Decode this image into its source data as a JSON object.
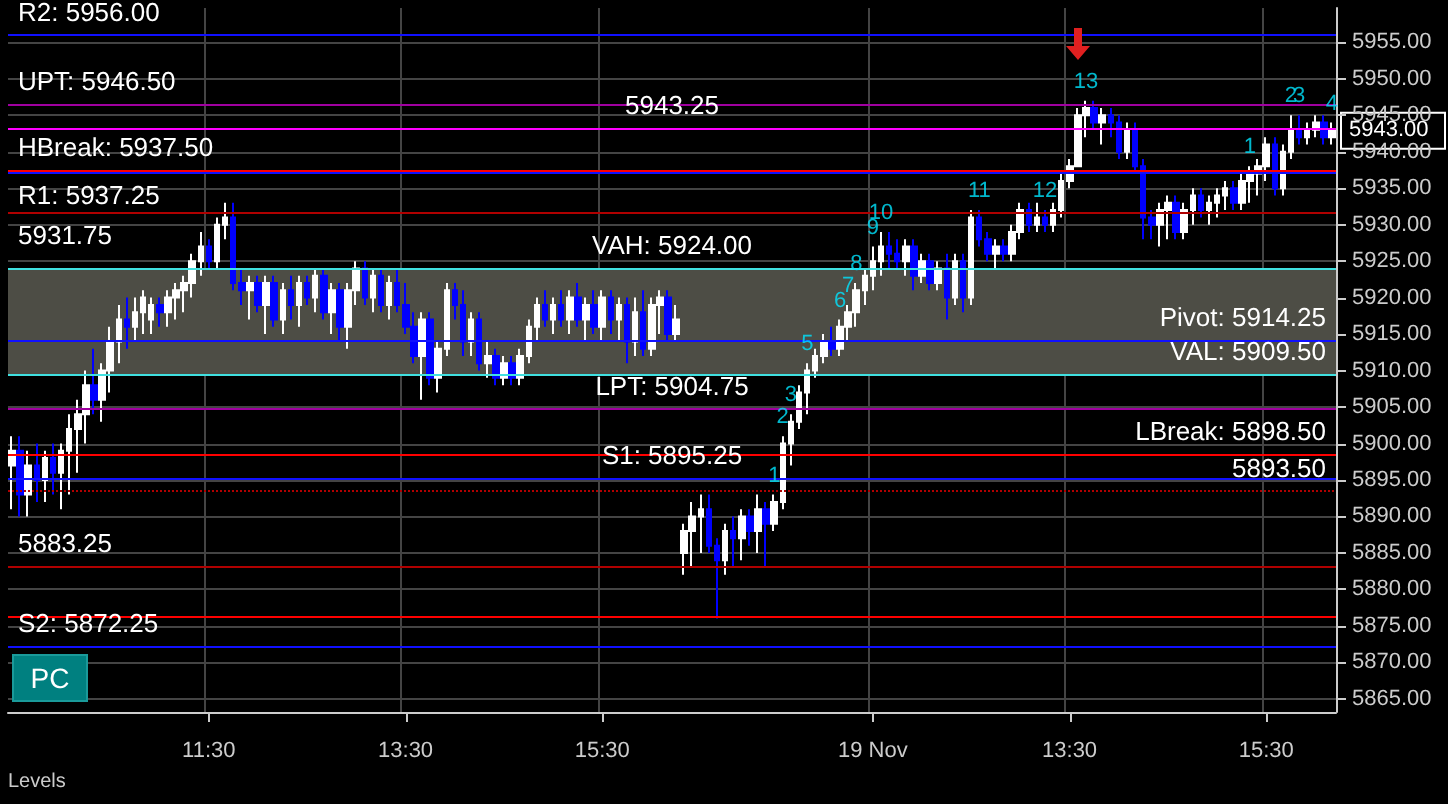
{
  "chart_data": {
    "type": "candlestick",
    "categories": [
      null,
      null,
      null,
      null,
      null,
      null,
      null,
      null,
      null,
      null,
      null,
      null,
      null,
      null,
      null,
      null,
      null,
      null,
      null,
      null,
      null,
      null,
      null,
      null,
      "11:30",
      null,
      null,
      null,
      null,
      null,
      null,
      null,
      null,
      null,
      null,
      null,
      null,
      null,
      null,
      null,
      null,
      null,
      null,
      null,
      null,
      null,
      null,
      null,
      "13:30",
      null,
      null,
      null,
      null,
      null,
      null,
      null,
      null,
      null,
      null,
      null,
      null,
      null,
      null,
      null,
      null,
      null,
      null,
      null,
      null,
      null,
      null,
      null,
      "15:30",
      null,
      null,
      null,
      null,
      null,
      null,
      null,
      null,
      null,
      null,
      null,
      null,
      null,
      null,
      null,
      null,
      null,
      null,
      null,
      null,
      null,
      null,
      null,
      null,
      null,
      null,
      null,
      null,
      null,
      null,
      null,
      null,
      "19 Nov",
      null,
      null,
      null,
      null,
      null,
      null,
      null,
      null,
      null,
      null,
      null,
      null,
      null,
      null,
      null,
      null,
      null,
      null,
      null,
      null,
      null,
      null,
      null,
      "13:30",
      null,
      null,
      null,
      null,
      null,
      null,
      null,
      null,
      null,
      null,
      null,
      null,
      null,
      null,
      null,
      null,
      null,
      null,
      null,
      null,
      null,
      null,
      null,
      "15:30",
      null,
      null,
      null,
      null,
      null,
      null,
      null,
      null
    ],
    "ohlc": [
      [
        5897,
        5901,
        5891,
        5899
      ],
      [
        5899,
        5901,
        5890,
        5893
      ],
      [
        5893,
        5899,
        5890,
        5897
      ],
      [
        5897,
        5900,
        5892,
        5895
      ],
      [
        5895,
        5899,
        5892,
        5898
      ],
      [
        5898,
        5900,
        5893,
        5896
      ],
      [
        5896,
        5900,
        5891,
        5899
      ],
      [
        5899,
        5904,
        5893,
        5902
      ],
      [
        5902,
        5906,
        5896,
        5904
      ],
      [
        5904,
        5910,
        5900,
        5908
      ],
      [
        5908,
        5913,
        5904,
        5906
      ],
      [
        5906,
        5911,
        5903,
        5910
      ],
      [
        5910,
        5916,
        5907,
        5914
      ],
      [
        5914,
        5919,
        5911,
        5917
      ],
      [
        5917,
        5920,
        5913,
        5916
      ],
      [
        5916,
        5920,
        5914,
        5918
      ],
      [
        5918,
        5921,
        5915,
        5920
      ],
      [
        5917,
        5920,
        5915,
        5919
      ],
      [
        5919,
        5920,
        5916,
        5918
      ],
      [
        5918,
        5921,
        5916,
        5920
      ],
      [
        5920,
        5922,
        5917,
        5921
      ],
      [
        5921,
        5923,
        5918,
        5922
      ],
      [
        5922,
        5926,
        5920,
        5925
      ],
      [
        5925,
        5929,
        5923,
        5927
      ],
      [
        5927,
        5928,
        5924,
        5925
      ],
      [
        5925,
        5931,
        5924,
        5930
      ],
      [
        5930,
        5933,
        5928,
        5931
      ],
      [
        5931,
        5933,
        5921,
        5922
      ],
      [
        5922,
        5924,
        5919,
        5921
      ],
      [
        5921,
        5923,
        5917,
        5922
      ],
      [
        5922,
        5923,
        5918,
        5919
      ],
      [
        5919,
        5923,
        5915,
        5922
      ],
      [
        5922,
        5923,
        5916,
        5917
      ],
      [
        5917,
        5922,
        5915,
        5921
      ],
      [
        5921,
        5923,
        5917,
        5919
      ],
      [
        5919,
        5923,
        5916,
        5922
      ],
      [
        5922,
        5923,
        5919,
        5920
      ],
      [
        5920,
        5924,
        5918,
        5923
      ],
      [
        5923,
        5924,
        5917,
        5918
      ],
      [
        5918,
        5922,
        5915,
        5921
      ],
      [
        5921,
        5922,
        5914,
        5916
      ],
      [
        5916,
        5922,
        5913,
        5921
      ],
      [
        5921,
        5925,
        5919,
        5924
      ],
      [
        5924,
        5925,
        5919,
        5920
      ],
      [
        5920,
        5924,
        5918,
        5923
      ],
      [
        5923,
        5924,
        5918,
        5919
      ],
      [
        5919,
        5923,
        5917,
        5922
      ],
      [
        5922,
        5924,
        5918,
        5919
      ],
      [
        5919,
        5922,
        5915,
        5916
      ],
      [
        5916,
        5918,
        5911,
        5912
      ],
      [
        5912,
        5918,
        5906,
        5917
      ],
      [
        5917,
        5918,
        5908,
        5909
      ],
      [
        5909,
        5914,
        5907,
        5913
      ],
      [
        5913,
        5922,
        5912,
        5921
      ],
      [
        5921,
        5922,
        5917,
        5919
      ],
      [
        5919,
        5921,
        5912,
        5914
      ],
      [
        5914,
        5918,
        5912,
        5917
      ],
      [
        5917,
        5918,
        5910,
        5911
      ],
      [
        5911,
        5914,
        5909,
        5912
      ],
      [
        5912,
        5913,
        5908,
        5909
      ],
      [
        5909,
        5912,
        5908,
        5911
      ],
      [
        5911,
        5912,
        5908,
        5909
      ],
      [
        5909,
        5913,
        5908,
        5912
      ],
      [
        5912,
        5917,
        5911,
        5916
      ],
      [
        5916,
        5920,
        5914,
        5919
      ],
      [
        5919,
        5921,
        5916,
        5917
      ],
      [
        5917,
        5920,
        5915,
        5919
      ],
      [
        5919,
        5921,
        5916,
        5917
      ],
      [
        5917,
        5921,
        5915,
        5920
      ],
      [
        5920,
        5922,
        5916,
        5917
      ],
      [
        5917,
        5920,
        5914,
        5919
      ],
      [
        5919,
        5921,
        5915,
        5916
      ],
      [
        5916,
        5921,
        5914,
        5920
      ],
      [
        5920,
        5921,
        5915,
        5917
      ],
      [
        5917,
        5920,
        5914,
        5919
      ],
      [
        5919,
        5920,
        5911,
        5914
      ],
      [
        5914,
        5920,
        5912,
        5918
      ],
      [
        5918,
        5921,
        5912,
        5913
      ],
      [
        5913,
        5920,
        5912,
        5919
      ],
      [
        5919,
        5921,
        5915,
        5920
      ],
      [
        5920,
        5921,
        5914,
        5915
      ],
      [
        5915,
        5919,
        5914,
        5917
      ],
      [
        5885,
        5889,
        5882,
        5888
      ],
      [
        5888,
        5892,
        5883,
        5890
      ],
      [
        5890,
        5893,
        5885,
        5891
      ],
      [
        5891,
        5893,
        5885,
        5886
      ],
      [
        5886,
        5887,
        5876,
        5884
      ],
      [
        5884,
        5889,
        5882,
        5888
      ],
      [
        5888,
        5890,
        5883,
        5887
      ],
      [
        5887,
        5891,
        5884,
        5890
      ],
      [
        5890,
        5891,
        5886,
        5888
      ],
      [
        5888,
        5893,
        5885,
        5891
      ],
      [
        5891,
        5892,
        5883,
        5889
      ],
      [
        5889,
        5893,
        5888,
        5892
      ],
      [
        5892,
        5901,
        5891,
        5900
      ],
      [
        5900,
        5904,
        5897,
        5903
      ],
      [
        5903,
        5908,
        5902,
        5907
      ],
      [
        5907,
        5911,
        5904,
        5910
      ],
      [
        5910,
        5913,
        5909,
        5912
      ],
      [
        5912,
        5915,
        5911,
        5914
      ],
      [
        5914,
        5916,
        5912,
        5913
      ],
      [
        5913,
        5917,
        5912,
        5916
      ],
      [
        5916,
        5919,
        5914,
        5918
      ],
      [
        5918,
        5922,
        5916,
        5921
      ],
      [
        5921,
        5924,
        5919,
        5923
      ],
      [
        5923,
        5927,
        5921,
        5925
      ],
      [
        5925,
        5929,
        5923,
        5927
      ],
      [
        5927,
        5929,
        5924,
        5926
      ],
      [
        5926,
        5928,
        5924,
        5925
      ],
      [
        5925,
        5928,
        5923,
        5927
      ],
      [
        5927,
        5928,
        5921,
        5923
      ],
      [
        5923,
        5926,
        5922,
        5925
      ],
      [
        5925,
        5926,
        5921,
        5922
      ],
      [
        5922,
        5925,
        5921,
        5924
      ],
      [
        5924,
        5926,
        5917,
        5920
      ],
      [
        5920,
        5926,
        5919,
        5925
      ],
      [
        5925,
        5926,
        5918,
        5920
      ],
      [
        5920,
        5932,
        5919,
        5931
      ],
      [
        5931,
        5932,
        5927,
        5928
      ],
      [
        5928,
        5929,
        5925,
        5926
      ],
      [
        5926,
        5928,
        5924,
        5927
      ],
      [
        5927,
        5928,
        5925,
        5926
      ],
      [
        5926,
        5930,
        5925,
        5929
      ],
      [
        5929,
        5933,
        5928,
        5932
      ],
      [
        5932,
        5933,
        5929,
        5930
      ],
      [
        5930,
        5933,
        5929,
        5931
      ],
      [
        5931,
        5932,
        5929,
        5930
      ],
      [
        5930,
        5933,
        5929,
        5932
      ],
      [
        5932,
        5937,
        5931,
        5936
      ],
      [
        5936,
        5939,
        5935,
        5938
      ],
      [
        5938,
        5946,
        5938,
        5945
      ],
      [
        5945,
        5947,
        5942,
        5946
      ],
      [
        5946,
        5947,
        5943,
        5944
      ],
      [
        5944,
        5946,
        5941,
        5945
      ],
      [
        5945,
        5946,
        5942,
        5944
      ],
      [
        5944,
        5945,
        5939,
        5940
      ],
      [
        5940,
        5944,
        5939,
        5943
      ],
      [
        5943,
        5944,
        5937,
        5938
      ],
      [
        5938,
        5939,
        5928,
        5931
      ],
      [
        5931,
        5932,
        5928,
        5930
      ],
      [
        5930,
        5933,
        5927,
        5932
      ],
      [
        5932,
        5934,
        5928,
        5933
      ],
      [
        5933,
        5934,
        5928,
        5929
      ],
      [
        5929,
        5933,
        5928,
        5932
      ],
      [
        5932,
        5935,
        5930,
        5934
      ],
      [
        5934,
        5935,
        5931,
        5932
      ],
      [
        5932,
        5934,
        5930,
        5933
      ],
      [
        5933,
        5935,
        5931,
        5934
      ],
      [
        5934,
        5936,
        5932,
        5935
      ],
      [
        5935,
        5936,
        5932,
        5933
      ],
      [
        5933,
        5937,
        5932,
        5936
      ],
      [
        5936,
        5938,
        5933,
        5937
      ],
      [
        5937,
        5939,
        5934,
        5938
      ],
      [
        5938,
        5942,
        5936,
        5941
      ],
      [
        5941,
        5942,
        5934,
        5935
      ],
      [
        5935,
        5941,
        5934,
        5940
      ],
      [
        5940,
        5945,
        5939,
        5943
      ],
      [
        5943,
        5945,
        5941,
        5942
      ],
      [
        5942,
        5944,
        5941,
        5943
      ],
      [
        5943,
        5945,
        5942,
        5944
      ],
      [
        5944,
        5945,
        5941,
        5942
      ],
      [
        5942,
        5944,
        5941,
        5943
      ]
    ],
    "colors": [
      "#ffffff",
      "#0000ff",
      "#ffffff",
      "#0000ff",
      "#ffffff",
      "#0000ff",
      "#ffffff",
      "#ffffff",
      "#ffffff",
      "#ffffff",
      "#0000ff",
      "#ffffff",
      "#ffffff",
      "#ffffff",
      "#0000ff",
      "#ffffff",
      "#ffffff",
      "#ffffff",
      "#0000ff",
      "#ffffff",
      "#ffffff",
      "#ffffff",
      "#ffffff",
      "#ffffff",
      "#0000ff",
      "#ffffff",
      "#ffffff",
      "#0000ff",
      "#0000ff",
      "#ffffff",
      "#0000ff",
      "#ffffff",
      "#0000ff",
      "#ffffff",
      "#0000ff",
      "#ffffff",
      "#0000ff",
      "#ffffff",
      "#0000ff",
      "#ffffff",
      "#0000ff",
      "#ffffff",
      "#ffffff",
      "#0000ff",
      "#ffffff",
      "#0000ff",
      "#ffffff",
      "#0000ff",
      "#0000ff",
      "#0000ff",
      "#ffffff",
      "#0000ff",
      "#ffffff",
      "#ffffff",
      "#0000ff",
      "#0000ff",
      "#ffffff",
      "#0000ff",
      "#ffffff",
      "#0000ff",
      "#ffffff",
      "#0000ff",
      "#ffffff",
      "#ffffff",
      "#ffffff",
      "#0000ff",
      "#ffffff",
      "#0000ff",
      "#ffffff",
      "#0000ff",
      "#ffffff",
      "#0000ff",
      "#ffffff",
      "#0000ff",
      "#ffffff",
      "#0000ff",
      "#ffffff",
      "#0000ff",
      "#ffffff",
      "#ffffff",
      "#0000ff",
      "#ffffff",
      "#ffffff",
      "#ffffff",
      "#ffffff",
      "#0000ff",
      "#0000ff",
      "#ffffff",
      "#0000ff",
      "#ffffff",
      "#0000ff",
      "#ffffff",
      "#0000ff",
      "#ffffff",
      "#ffffff",
      "#ffffff",
      "#ffffff",
      "#ffffff",
      "#ffffff",
      "#ffffff",
      "#0000ff",
      "#ffffff",
      "#ffffff",
      "#ffffff",
      "#ffffff",
      "#ffffff",
      "#ffffff",
      "#0000ff",
      "#0000ff",
      "#ffffff",
      "#0000ff",
      "#ffffff",
      "#0000ff",
      "#ffffff",
      "#0000ff",
      "#ffffff",
      "#0000ff",
      "#ffffff",
      "#0000ff",
      "#0000ff",
      "#ffffff",
      "#0000ff",
      "#ffffff",
      "#ffffff",
      "#0000ff",
      "#ffffff",
      "#0000ff",
      "#ffffff",
      "#ffffff",
      "#ffffff",
      "#ffffff",
      "#ffffff",
      "#0000ff",
      "#ffffff",
      "#0000ff",
      "#0000ff",
      "#ffffff",
      "#0000ff",
      "#0000ff",
      "#0000ff",
      "#ffffff",
      "#ffffff",
      "#0000ff",
      "#ffffff",
      "#ffffff",
      "#0000ff",
      "#ffffff",
      "#ffffff",
      "#ffffff",
      "#0000ff",
      "#ffffff",
      "#ffffff",
      "#ffffff",
      "#ffffff",
      "#0000ff",
      "#ffffff",
      "#ffffff",
      "#0000ff",
      "#ffffff",
      "#ffffff",
      "#0000ff",
      "#ffffff"
    ],
    "value_labels": [
      null,
      null,
      null,
      null,
      null,
      null,
      null,
      null,
      null,
      null,
      null,
      null,
      null,
      null,
      null,
      null,
      null,
      null,
      null,
      null,
      null,
      null,
      null,
      null,
      null,
      null,
      null,
      null,
      null,
      null,
      null,
      null,
      null,
      null,
      null,
      null,
      null,
      null,
      null,
      null,
      null,
      null,
      null,
      null,
      null,
      null,
      null,
      null,
      null,
      null,
      null,
      null,
      null,
      null,
      null,
      null,
      null,
      null,
      null,
      null,
      null,
      null,
      null,
      null,
      null,
      null,
      null,
      null,
      null,
      null,
      null,
      null,
      null,
      null,
      null,
      null,
      null,
      null,
      null,
      null,
      null,
      null,
      null,
      null,
      null,
      null,
      null,
      null,
      null,
      null,
      null,
      null,
      null,
      "1",
      "2",
      "3",
      null,
      "5",
      null,
      null,
      null,
      "6",
      "7",
      "8",
      null,
      "9",
      "10",
      null,
      null,
      null,
      null,
      null,
      null,
      null,
      null,
      null,
      null,
      null,
      "11",
      null,
      null,
      null,
      null,
      null,
      null,
      null,
      "12",
      null,
      null,
      null,
      null,
      "13",
      null,
      null,
      null,
      null,
      null,
      null,
      null,
      null,
      null,
      null,
      null,
      null,
      null,
      null,
      null,
      null,
      null,
      null,
      null,
      "1",
      null,
      null,
      null,
      null,
      "2",
      "3",
      null,
      null,
      null,
      "4"
    ],
    "ylim": [
      5863.2,
      5959.7
    ],
    "yticks": [
      {
        "value": 5865,
        "label": "5865.00"
      },
      {
        "value": 5870,
        "label": "5870.00"
      },
      {
        "value": 5875,
        "label": "5875.00"
      },
      {
        "value": 5880,
        "label": "5880.00"
      },
      {
        "value": 5885,
        "label": "5885.00"
      },
      {
        "value": 5890,
        "label": "5890.00"
      },
      {
        "value": 5895,
        "label": "5895.00"
      },
      {
        "value": 5900,
        "label": "5900.00"
      },
      {
        "value": 5905,
        "label": "5905.00"
      },
      {
        "value": 5910,
        "label": "5910.00"
      },
      {
        "value": 5915,
        "label": "5915.00"
      },
      {
        "value": 5920,
        "label": "5920.00"
      },
      {
        "value": 5925,
        "label": "5925.00"
      },
      {
        "value": 5930,
        "label": "5930.00"
      },
      {
        "value": 5935,
        "label": "5935.00"
      },
      {
        "value": 5940,
        "label": "5940.00"
      },
      {
        "value": 5945,
        "label": "5945.00"
      },
      {
        "value": 5950,
        "label": "5950.00"
      },
      {
        "value": 5955,
        "label": "5955.00"
      }
    ],
    "grid": true,
    "ref_lines": [
      {
        "axis": "y",
        "value": 5956,
        "label": "R2: 5956.00",
        "color": "#1010ff"
      },
      {
        "axis": "y",
        "value": 5946.5,
        "label": "UPT: 5946.50",
        "color": "#a000a0"
      },
      {
        "axis": "y",
        "value": 5937.5,
        "label": "HBreak: 5937.50",
        "color": "#ff0000"
      },
      {
        "axis": "y",
        "value": 5937.25,
        "label": "R1: 5937.25",
        "color": "#1010ff"
      },
      {
        "axis": "y",
        "value": 5924,
        "label": "VAH: 5924.00",
        "color": "#40e0e0"
      },
      {
        "axis": "y",
        "value": 5914.25,
        "label": "Pivot: 5914.25",
        "color": "#1010ff"
      },
      {
        "axis": "y",
        "value": 5909.5,
        "label": "VAL: 5909.50",
        "color": "#40e0e0"
      },
      {
        "axis": "y",
        "value": 5904.75,
        "label": "LPT: 5904.75",
        "color": "#a000a0"
      },
      {
        "axis": "y",
        "value": 5898.5,
        "label": "LBreak: 5898.50",
        "color": "#ff0000"
      },
      {
        "axis": "y",
        "value": 5895.25,
        "label": "S1: 5895.25",
        "color": "#1010ff"
      },
      {
        "axis": "y",
        "value": 5872.25,
        "label": "S2: 5872.25",
        "color": "#1010ff"
      },
      {
        "axis": "y",
        "value": 5943.25,
        "label": "5943.25",
        "color": "#ff00ff"
      },
      {
        "axis": "y",
        "value": 5931.75,
        "label": "5931.75",
        "color": "#b00000"
      },
      {
        "axis": "y",
        "value": 5893.5,
        "label": "5893.50",
        "color": "#b00000",
        "line_style": "dotted"
      },
      {
        "axis": "y",
        "value": 5883.25,
        "label": "5883.25",
        "color": "#b00000"
      },
      {
        "axis": "y",
        "value": 5876.25,
        "color": "#ff0000"
      }
    ],
    "bands": [
      {
        "axis": "y",
        "from": 5909.5,
        "to": 5924,
        "color": "#4d4d45"
      }
    ],
    "annotations": [
      "Levels",
      "PC",
      "5943.00"
    ]
  }
}
